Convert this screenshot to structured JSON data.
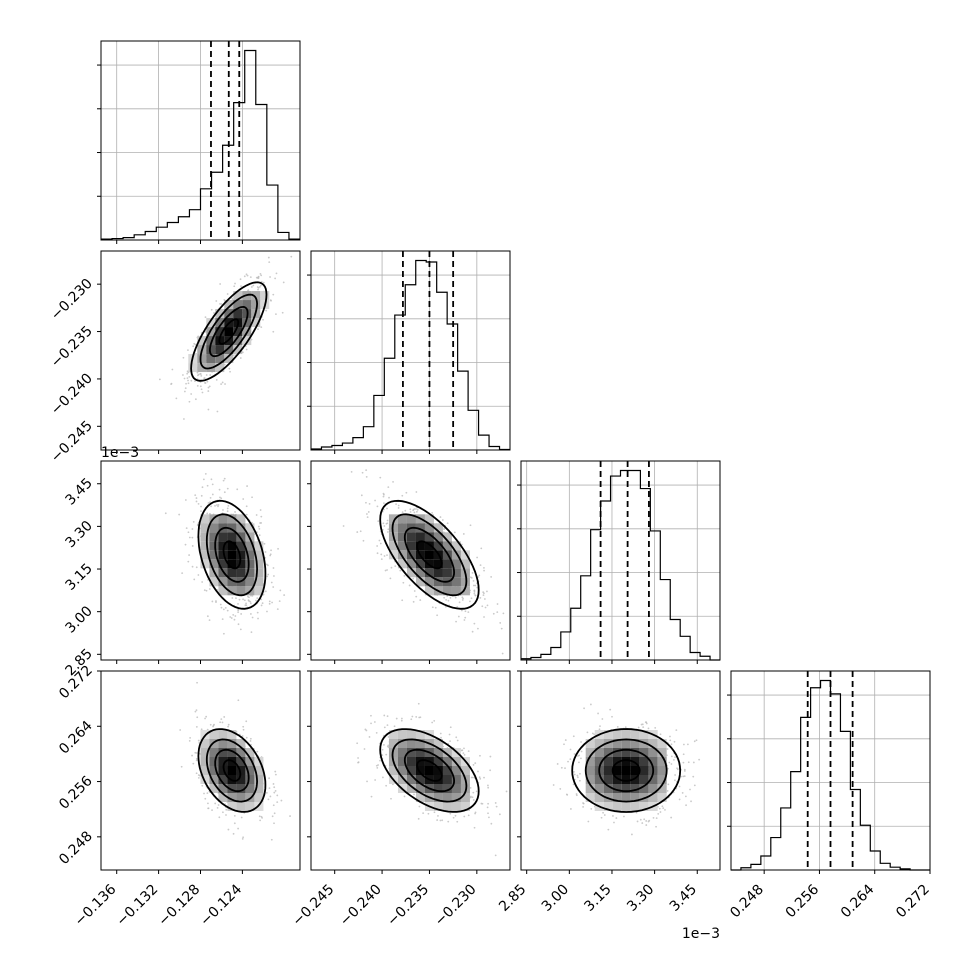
{
  "chart_data": {
    "type": "corner",
    "style": {
      "grid": true,
      "grid_color": "#b0b0b0",
      "histogram_color": "#000000",
      "quantile_line_style": "dashed",
      "point_color": "#bdbdbd",
      "density_colormap": "greys"
    },
    "params": [
      {
        "id": "p1",
        "range": [
          -0.1375,
          -0.1185
        ],
        "ticks": [
          -0.136,
          -0.132,
          -0.128,
          -0.124
        ],
        "tick_labels": [
          "−0.136",
          "−0.132",
          "−0.128",
          "−0.124"
        ],
        "quantiles": [
          -0.127,
          -0.1253,
          -0.1243
        ]
      },
      {
        "id": "p2",
        "range": [
          -0.2475,
          -0.2265
        ],
        "ticks": [
          -0.245,
          -0.24,
          -0.235,
          -0.23
        ],
        "tick_labels": [
          "−0.245",
          "−0.240",
          "−0.235",
          "−0.230"
        ],
        "quantiles": [
          -0.2378,
          -0.235,
          -0.2325
        ]
      },
      {
        "id": "p3",
        "range": [
          2.83,
          3.53
        ],
        "ticks": [
          2.85,
          3.0,
          3.15,
          3.3,
          3.45
        ],
        "tick_labels": [
          "2.85",
          "3.00",
          "3.15",
          "3.30",
          "3.45"
        ],
        "offset_text": "1e−3",
        "quantiles": [
          3.11,
          3.205,
          3.28
        ]
      },
      {
        "id": "p4",
        "range": [
          0.2432,
          0.272
        ],
        "ticks": [
          0.248,
          0.256,
          0.264,
          0.272
        ],
        "tick_labels": [
          "0.248",
          "0.256",
          "0.264",
          "0.272"
        ],
        "quantiles": [
          0.2543,
          0.2576,
          0.2608
        ]
      }
    ],
    "histograms": [
      {
        "param": 0,
        "counts": [
          0.2,
          0.3,
          0.5,
          1.1,
          1.8,
          2.7,
          3.7,
          4.9,
          6.4,
          10.8,
          14.3,
          20.0,
          29.0,
          40.0,
          28.6,
          11.6,
          1.6,
          0.2
        ]
      },
      {
        "param": 1,
        "counts": [
          0.2,
          0.6,
          0.9,
          1.4,
          2.5,
          4.7,
          11.0,
          18.5,
          27.2,
          33.3,
          38.2,
          37.9,
          31.8,
          25.4,
          15.9,
          8.0,
          3.0,
          0.7,
          0.1
        ]
      },
      {
        "param": 2,
        "counts": [
          0.2,
          0.4,
          0.9,
          2.0,
          4.5,
          8.3,
          13.5,
          20.9,
          25.5,
          29.5,
          30.4,
          30.4,
          27.5,
          20.7,
          12.9,
          6.5,
          3.8,
          1.2,
          0.6,
          0.0
        ]
      },
      {
        "param": 3,
        "counts": [
          0.0,
          0.4,
          1.0,
          2.5,
          5.8,
          11.1,
          17.6,
          27.3,
          32.6,
          33.9,
          31.5,
          24.8,
          14.4,
          8.0,
          3.4,
          1.2,
          0.5,
          0.2,
          0.0,
          0.0
        ]
      }
    ],
    "pairs": [
      {
        "x": 0,
        "y": 1,
        "mean": [
          -0.1253,
          -0.235
        ],
        "sd": [
          0.0018,
          0.0026
        ],
        "corr": 0.75
      },
      {
        "x": 0,
        "y": 2,
        "mean": [
          -0.125,
          3.2
        ],
        "sd": [
          0.0016,
          0.095
        ],
        "corr": -0.35
      },
      {
        "x": 1,
        "y": 2,
        "mean": [
          -0.235,
          3.2
        ],
        "sd": [
          0.0026,
          0.095
        ],
        "corr": -0.65
      },
      {
        "x": 0,
        "y": 3,
        "mean": [
          -0.125,
          0.2576
        ],
        "sd": [
          0.0016,
          0.003
        ],
        "corr": -0.35
      },
      {
        "x": 1,
        "y": 3,
        "mean": [
          -0.235,
          0.2576
        ],
        "sd": [
          0.0026,
          0.003
        ],
        "corr": -0.5
      },
      {
        "x": 2,
        "y": 3,
        "mean": [
          3.2,
          0.2576
        ],
        "sd": [
          0.095,
          0.003
        ],
        "corr": 0.0
      }
    ]
  }
}
